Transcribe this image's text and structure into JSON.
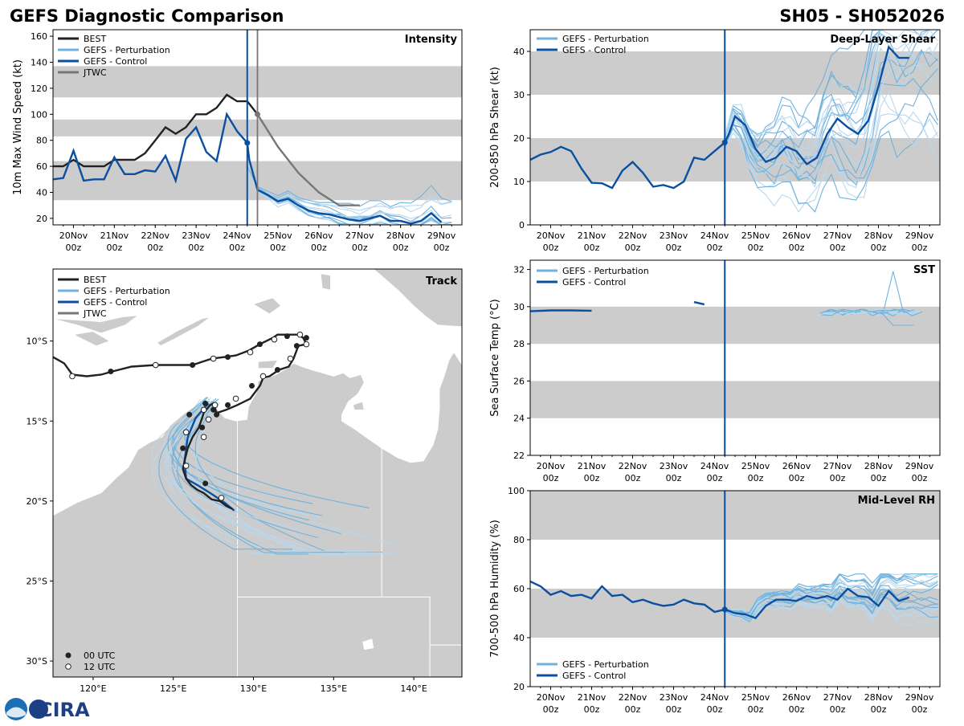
{
  "header": {
    "title": "GEFS Diagnostic Comparison",
    "storm_id": "SH05 - SH052026"
  },
  "time_axis": {
    "ticks": [
      "20Nov",
      "21Nov",
      "22Nov",
      "23Nov",
      "24Nov",
      "25Nov",
      "26Nov",
      "27Nov",
      "28Nov",
      "29Nov"
    ],
    "subticks": [
      "00z",
      "00z",
      "00z",
      "00z",
      "00z",
      "00z",
      "00z",
      "00z",
      "00z",
      "00z"
    ],
    "start": 0,
    "end": 10,
    "tick_values": [
      0.5,
      1.5,
      2.5,
      3.5,
      4.5,
      5.5,
      6.5,
      7.5,
      8.5,
      9.5
    ],
    "initial_time": 4.75,
    "jtwc_time": 5.0
  },
  "legend": {
    "best": "BEST",
    "perturbation": "GEFS - Perturbation",
    "control": "GEFS - Control",
    "jtwc": "JTWC",
    "utc00": "00 UTC",
    "utc12": "12 UTC"
  },
  "colors": {
    "best": "#222222",
    "perturbation": "#6fb2dd",
    "perturbation_light": "#b9d8ee",
    "control": "#0b4fa0",
    "jtwc": "#777777",
    "shade": "#cccccc",
    "land": "#cccccc"
  },
  "chart_data": [
    {
      "id": "intensity",
      "type": "line",
      "title": "Intensity",
      "ylabel": "10m Max Wind Speed (kt)",
      "ylim": [
        15,
        165
      ],
      "yticks": [
        20,
        40,
        60,
        80,
        100,
        120,
        140,
        160
      ],
      "shaded_bands": [
        [
          34,
          64
        ],
        [
          83,
          96
        ],
        [
          113,
          137
        ]
      ],
      "series": [
        {
          "name": "BEST",
          "x": [
            0,
            0.25,
            0.5,
            0.75,
            1,
            1.25,
            1.5,
            1.75,
            2,
            2.25,
            2.5,
            2.75,
            3,
            3.25,
            3.5,
            3.75,
            4,
            4.25,
            4.5,
            4.75,
            5.0
          ],
          "y": [
            60,
            60,
            65,
            60,
            60,
            60,
            65,
            65,
            65,
            70,
            80,
            90,
            85,
            90,
            100,
            100,
            105,
            115,
            110,
            110,
            100
          ]
        },
        {
          "name": "GEFS - Control",
          "x": [
            0,
            0.25,
            0.5,
            0.75,
            1,
            1.25,
            1.5,
            1.75,
            2,
            2.25,
            2.5,
            2.75,
            3,
            3.25,
            3.5,
            3.75,
            4,
            4.25,
            4.5,
            4.75,
            4.8,
            5.0,
            5.25,
            5.5,
            5.75,
            6,
            6.25,
            6.5,
            6.75,
            7,
            7.25,
            7.5,
            7.75,
            8,
            8.25,
            8.5,
            8.75,
            9,
            9.25,
            9.5
          ],
          "y": [
            50,
            51,
            72,
            49,
            50,
            50,
            67,
            54,
            54,
            57,
            56,
            68,
            49,
            81,
            90,
            71,
            64,
            100,
            87,
            78,
            65,
            42,
            38,
            33,
            35,
            30,
            26,
            24,
            23,
            21,
            19,
            18,
            20,
            22,
            18,
            18,
            16,
            18,
            24,
            17
          ]
        },
        {
          "name": "JTWC",
          "x": [
            5.0,
            5.5,
            6.0,
            6.5,
            7.0,
            7.5
          ],
          "y": [
            100,
            75,
            55,
            40,
            30,
            30
          ]
        }
      ],
      "ensemble_note": "perturbation members plotted after initial time"
    },
    {
      "id": "shear",
      "type": "line",
      "title": "Deep-Layer Shear",
      "ylabel": "200-850 hPa Shear (kt)",
      "ylim": [
        0,
        45
      ],
      "yticks": [
        0,
        10,
        20,
        30,
        40
      ],
      "shaded_bands": [
        [
          10,
          20
        ],
        [
          30,
          40
        ]
      ],
      "series": [
        {
          "name": "GEFS - Control",
          "x": [
            0,
            0.25,
            0.5,
            0.75,
            1,
            1.25,
            1.5,
            1.75,
            2,
            2.25,
            2.5,
            2.75,
            3,
            3.25,
            3.5,
            3.75,
            4,
            4.25,
            4.5,
            4.75,
            4.85,
            5.0,
            5.25,
            5.5,
            5.75,
            6,
            6.25,
            6.5,
            6.75,
            7,
            7.25,
            7.5,
            7.75,
            8,
            8.25,
            8.5,
            8.75,
            9,
            9.25
          ],
          "y": [
            15,
            16.2,
            16.8,
            18,
            17,
            13,
            9.7,
            9.6,
            8.5,
            12.5,
            14.5,
            12,
            8.8,
            9.2,
            8.5,
            10,
            15.5,
            15,
            17,
            19,
            21,
            25,
            23,
            17.5,
            14.5,
            15.5,
            18,
            17,
            14,
            15.5,
            21,
            24.5,
            22.5,
            21,
            24,
            32,
            41,
            38.5,
            38.5
          ]
        }
      ]
    },
    {
      "id": "sst",
      "type": "line",
      "title": "SST",
      "ylabel": "Sea Surface Temp (°C)",
      "ylim": [
        22,
        32.5
      ],
      "yticks": [
        22,
        24,
        26,
        28,
        30,
        32
      ],
      "shaded_bands": [
        [
          24,
          26
        ],
        [
          28,
          30
        ]
      ],
      "series": [
        {
          "name": "GEFS - Control",
          "x": [
            0,
            0.5,
            1,
            1.5
          ],
          "y": [
            29.75,
            29.8,
            29.8,
            29.78
          ]
        },
        {
          "name": "GEFS - Control (segment)",
          "x": [
            4.0,
            4.25
          ],
          "y": [
            30.25,
            30.12
          ]
        }
      ]
    },
    {
      "id": "rh",
      "type": "line",
      "title": "Mid-Level RH",
      "ylabel": "700-500 hPa Humidity (%)",
      "ylim": [
        20,
        100
      ],
      "yticks": [
        20,
        40,
        60,
        80,
        100
      ],
      "shaded_bands": [
        [
          40,
          60
        ],
        [
          80,
          100
        ]
      ],
      "series": [
        {
          "name": "GEFS - Control",
          "x": [
            0,
            0.25,
            0.5,
            0.75,
            1,
            1.25,
            1.5,
            1.75,
            2,
            2.25,
            2.5,
            2.75,
            3,
            3.25,
            3.5,
            3.75,
            4,
            4.25,
            4.5,
            4.75,
            5.0,
            5.25,
            5.5,
            5.75,
            6,
            6.25,
            6.5,
            6.75,
            7,
            7.25,
            7.5,
            7.75,
            8,
            8.25,
            8.5,
            8.75,
            9,
            9.25
          ],
          "y": [
            63,
            61,
            57.5,
            59,
            57,
            57.5,
            56,
            61,
            57,
            57.5,
            54.5,
            55.5,
            54,
            53,
            53.5,
            55.5,
            54,
            53.5,
            50.5,
            51.5,
            50,
            49.5,
            48,
            53,
            55.5,
            55.5,
            55,
            57,
            56,
            57,
            55.5,
            60,
            57,
            56.5,
            53,
            59,
            55,
            56.5
          ]
        }
      ]
    },
    {
      "id": "track",
      "type": "scatter",
      "title": "Track",
      "xlim": [
        117.5,
        143
      ],
      "ylim": [
        -31,
        -5.5
      ],
      "xticks": [
        "120°E",
        "125°E",
        "130°E",
        "135°E",
        "140°E"
      ],
      "xtick_values": [
        120,
        125,
        130,
        135,
        140
      ],
      "yticks": [
        "10°S",
        "15°S",
        "20°S",
        "25°S",
        "30°S"
      ],
      "ytick_values": [
        -10,
        -15,
        -20,
        -25,
        -30
      ],
      "best_track": {
        "lon": [
          117.5,
          118.2,
          118.7,
          119.6,
          120.5,
          121.2,
          122.4,
          123.9,
          125.1,
          126.2,
          126.8,
          127.4,
          128.2,
          128.9,
          129.7,
          130.4,
          131.2,
          131.5,
          132.2,
          132.8,
          133.1,
          133.3,
          133.3,
          132.8,
          132.5,
          132.2,
          131.6,
          131.0,
          130.6,
          130.4,
          129.8,
          129.0,
          128.3,
          127.7,
          127.5,
          127.3,
          126.9,
          126.6,
          126.2,
          125.9,
          125.7,
          125.6,
          125.8,
          126.1,
          126.5,
          126.9,
          127.4,
          127.9,
          128.3,
          128.7
        ],
        "lat": [
          -11.0,
          -11.4,
          -12.1,
          -12.2,
          -12.1,
          -11.9,
          -11.6,
          -11.5,
          -11.5,
          -11.5,
          -11.3,
          -11.1,
          -11.0,
          -10.9,
          -10.6,
          -10.2,
          -9.8,
          -9.6,
          -9.6,
          -9.6,
          -9.8,
          -10.2,
          -10.2,
          -10.3,
          -11.1,
          -11.6,
          -11.8,
          -12.2,
          -12.3,
          -12.8,
          -13.6,
          -14.0,
          -14.3,
          -14.5,
          -13.9,
          -14.0,
          -14.5,
          -15.4,
          -16.0,
          -16.7,
          -17.5,
          -18.0,
          -18.6,
          -19.0,
          -19.3,
          -19.5,
          -19.9,
          -20.0,
          -20.3,
          -20.5
        ],
        "dots_00": [
          [
            121.1,
            -11.9
          ],
          [
            126.2,
            -11.5
          ],
          [
            128.4,
            -11.0
          ],
          [
            130.4,
            -10.2
          ],
          [
            132.1,
            -9.7
          ],
          [
            133.3,
            -9.8
          ],
          [
            132.7,
            -10.3
          ],
          [
            131.5,
            -11.8
          ],
          [
            129.9,
            -12.8
          ],
          [
            128.4,
            -14.0
          ],
          [
            127.7,
            -14.6
          ],
          [
            127.5,
            -14.3
          ],
          [
            127.0,
            -13.9
          ],
          [
            126.8,
            -15.4
          ],
          [
            126.0,
            -14.6
          ],
          [
            125.6,
            -16.7
          ],
          [
            127.0,
            -18.9
          ]
        ],
        "dots_12": [
          [
            118.7,
            -12.2
          ],
          [
            123.9,
            -11.5
          ],
          [
            127.5,
            -11.1
          ],
          [
            129.8,
            -10.7
          ],
          [
            131.3,
            -9.9
          ],
          [
            132.9,
            -9.6
          ],
          [
            133.3,
            -10.2
          ],
          [
            132.3,
            -11.1
          ],
          [
            130.6,
            -12.2
          ],
          [
            128.9,
            -13.6
          ],
          [
            127.6,
            -14.0
          ],
          [
            126.9,
            -14.3
          ],
          [
            127.2,
            -14.9
          ],
          [
            126.9,
            -16.0
          ],
          [
            125.8,
            -15.7
          ],
          [
            125.8,
            -17.8
          ],
          [
            128.0,
            -19.8
          ]
        ]
      },
      "control_track": {
        "lon": [
          127.2,
          127.0,
          126.4,
          125.9,
          125.7,
          125.8,
          126.5,
          127.3,
          128.2,
          128.8
        ],
        "lat": [
          -13.9,
          -14.1,
          -14.8,
          -16.0,
          -17.5,
          -18.6,
          -19.0,
          -19.5,
          -20.1,
          -20.6
        ]
      }
    }
  ]
}
